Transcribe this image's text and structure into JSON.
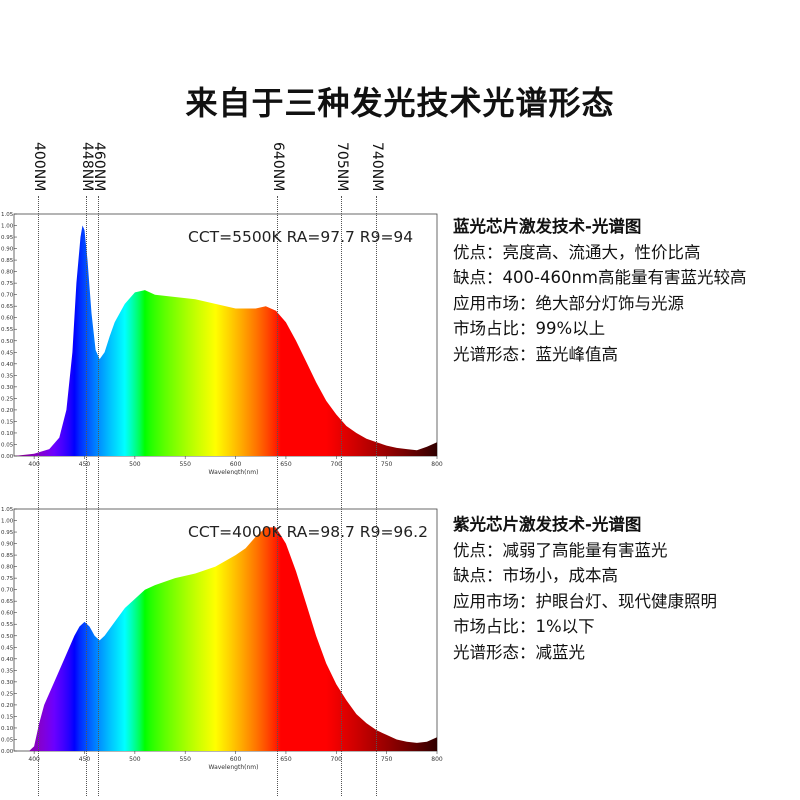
{
  "title": "来自于三种发光技术光谱形态",
  "markers": [
    "400NM",
    "448NM",
    "460NM",
    "640NM",
    "705NM",
    "740NM"
  ],
  "panels": [
    {
      "info_title": "蓝光芯片激发技术-光谱图",
      "rows": [
        {
          "key": "优点",
          "value": "亮度高、流通大，性价比高"
        },
        {
          "key": "缺点",
          "value": "400-460nm高能量有害蓝光较高"
        },
        {
          "key": "应用市场",
          "value": "绝大部分灯饰与光源"
        },
        {
          "key": "市场占比",
          "value": "99%以上"
        },
        {
          "key": "光谱形态",
          "value": "蓝光峰值高"
        }
      ]
    },
    {
      "info_title": "紫光芯片激发技术-光谱图",
      "rows": [
        {
          "key": "优点",
          "value": "减弱了高能量有害蓝光"
        },
        {
          "key": "缺点",
          "value": "市场小，成本高"
        },
        {
          "key": "应用市场",
          "value": "护眼台灯、现代健康照明"
        },
        {
          "key": "市场占比",
          "value": "1%以下"
        },
        {
          "key": "光谱形态",
          "value": "减蓝光"
        }
      ]
    }
  ],
  "chart_data": [
    {
      "type": "area",
      "stats": "CCT=5500K  RA=97.7  R9=94",
      "xlabel": "Wavelength(nm)",
      "xlim": [
        380,
        800
      ],
      "ylim": [
        0,
        1.05
      ],
      "x_ticks": [
        400,
        450,
        500,
        550,
        600,
        650,
        700,
        750,
        800
      ],
      "y_ticks": [
        "0.00",
        "0.05",
        "0.10",
        "0.15",
        "0.20",
        "0.25",
        "0.30",
        "0.35",
        "0.40",
        "0.45",
        "0.50",
        "0.55",
        "0.60",
        "0.65",
        "0.70",
        "0.75",
        "0.80",
        "0.85",
        "0.90",
        "0.95",
        "1.00",
        "1.05"
      ],
      "series": [
        {
          "x": [
            380,
            400,
            415,
            425,
            432,
            438,
            442,
            446,
            448,
            450,
            453,
            457,
            461,
            465,
            470,
            475,
            480,
            490,
            500,
            510,
            520,
            540,
            560,
            580,
            600,
            620,
            630,
            640,
            650,
            660,
            670,
            680,
            690,
            700,
            710,
            720,
            730,
            740,
            750,
            760,
            770,
            780,
            790,
            800
          ],
          "y": [
            0.0,
            0.01,
            0.03,
            0.08,
            0.2,
            0.45,
            0.75,
            0.95,
            1.0,
            0.98,
            0.85,
            0.62,
            0.46,
            0.42,
            0.45,
            0.52,
            0.58,
            0.66,
            0.71,
            0.72,
            0.7,
            0.69,
            0.68,
            0.66,
            0.64,
            0.64,
            0.65,
            0.63,
            0.58,
            0.5,
            0.41,
            0.32,
            0.24,
            0.18,
            0.13,
            0.1,
            0.075,
            0.06,
            0.045,
            0.035,
            0.03,
            0.025,
            0.04,
            0.06
          ]
        }
      ]
    },
    {
      "type": "area",
      "stats": "CCT=4000K  RA=98.7  R9=96.2",
      "xlabel": "Wavelength(nm)",
      "xlim": [
        380,
        800
      ],
      "ylim": [
        0,
        1.05
      ],
      "x_ticks": [
        400,
        450,
        500,
        550,
        600,
        650,
        700,
        750,
        800
      ],
      "y_ticks": [
        "0.00",
        "0.05",
        "0.10",
        "0.15",
        "0.20",
        "0.25",
        "0.30",
        "0.35",
        "0.40",
        "0.45",
        "0.50",
        "0.55",
        "0.60",
        "0.65",
        "0.70",
        "0.75",
        "0.80",
        "0.85",
        "0.90",
        "0.95",
        "1.00",
        "1.05"
      ],
      "series": [
        {
          "x": [
            380,
            395,
            400,
            405,
            410,
            420,
            430,
            440,
            445,
            450,
            455,
            460,
            465,
            470,
            480,
            490,
            500,
            510,
            520,
            540,
            560,
            580,
            600,
            610,
            620,
            630,
            640,
            650,
            660,
            670,
            680,
            690,
            700,
            710,
            720,
            730,
            740,
            750,
            760,
            770,
            780,
            790,
            800
          ],
          "y": [
            0.0,
            0.0,
            0.02,
            0.12,
            0.2,
            0.3,
            0.4,
            0.5,
            0.54,
            0.56,
            0.54,
            0.5,
            0.48,
            0.5,
            0.56,
            0.62,
            0.66,
            0.7,
            0.72,
            0.75,
            0.77,
            0.8,
            0.85,
            0.88,
            0.93,
            0.97,
            0.97,
            0.9,
            0.78,
            0.64,
            0.5,
            0.38,
            0.29,
            0.22,
            0.16,
            0.12,
            0.09,
            0.07,
            0.05,
            0.04,
            0.035,
            0.04,
            0.06
          ]
        }
      ]
    }
  ]
}
